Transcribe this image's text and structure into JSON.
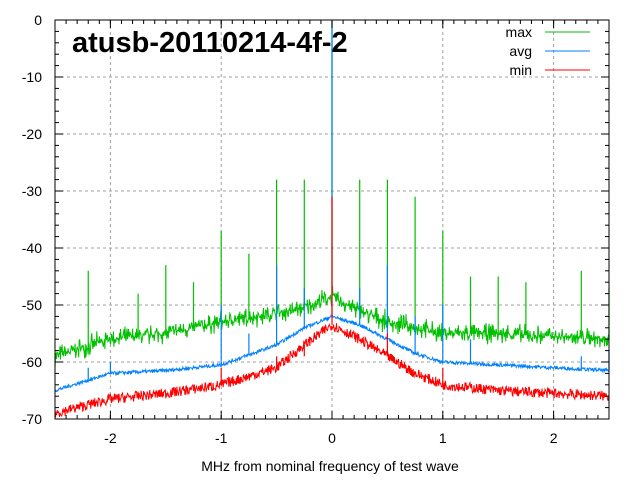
{
  "chart_data": {
    "type": "line",
    "title": "atusb-20110214-4f-2",
    "xlabel": "MHz from nominal frequency of test wave",
    "ylabel": "",
    "xlim": [
      -2.5,
      2.5
    ],
    "ylim": [
      -70,
      0
    ],
    "xticks": [
      -2,
      -1,
      0,
      1,
      2
    ],
    "yticks": [
      0,
      -10,
      -20,
      -30,
      -40,
      -50,
      -60,
      -70
    ],
    "grid": true,
    "legend_position": "top-right",
    "series": [
      {
        "name": "max",
        "color": "#00c000",
        "noise": 2.2,
        "x": [
          -2.5,
          -2,
          -1.5,
          -1,
          -0.5,
          -0.25,
          0,
          0.25,
          0.5,
          0.75,
          1,
          1.5,
          2,
          2.5
        ],
        "y": [
          -59,
          -56,
          -55,
          -53,
          -51.5,
          -50.5,
          -48.5,
          -51,
          -53,
          -54,
          -55,
          -55,
          -55.5,
          -56
        ],
        "spikes": [
          [
            -2.2,
            -44
          ],
          [
            -1.75,
            -48
          ],
          [
            -1.5,
            -43
          ],
          [
            -1.25,
            -46
          ],
          [
            -1,
            -37
          ],
          [
            -0.75,
            -41
          ],
          [
            -0.5,
            -28
          ],
          [
            -0.25,
            -28
          ],
          [
            0,
            0
          ],
          [
            0.25,
            -28
          ],
          [
            0.5,
            -28
          ],
          [
            0.75,
            -31
          ],
          [
            1,
            -37
          ],
          [
            1.25,
            -45
          ],
          [
            1.5,
            -45
          ],
          [
            1.75,
            -46
          ],
          [
            2.25,
            -44
          ],
          [
            2.5,
            -47
          ]
        ]
      },
      {
        "name": "avg",
        "color": "#0080ff",
        "noise": 0.3,
        "x": [
          -2.5,
          -2,
          -1.5,
          -1,
          -0.5,
          -0.25,
          0,
          0.25,
          0.5,
          0.75,
          1,
          1.5,
          2,
          2.5
        ],
        "y": [
          -65,
          -62,
          -61.5,
          -60.5,
          -57,
          -54,
          -52,
          -53.5,
          -56,
          -58.5,
          -60,
          -60.5,
          -61,
          -61.5
        ],
        "spikes": [
          [
            -2.2,
            -61
          ],
          [
            -2,
            -60
          ],
          [
            -1,
            -50
          ],
          [
            -0.75,
            -55
          ],
          [
            -0.5,
            -43
          ],
          [
            -0.25,
            -47
          ],
          [
            0,
            0
          ],
          [
            0.25,
            -47
          ],
          [
            0.5,
            -43
          ],
          [
            0.75,
            -52
          ],
          [
            1,
            -50
          ],
          [
            1.25,
            -56
          ],
          [
            2.25,
            -59
          ],
          [
            2.5,
            -58
          ]
        ]
      },
      {
        "name": "min",
        "color": "#ff0000",
        "noise": 0.9,
        "x": [
          -2.5,
          -2,
          -1.5,
          -1,
          -0.5,
          -0.25,
          0,
          0.25,
          0.5,
          0.75,
          1,
          1.5,
          2,
          2.5
        ],
        "y": [
          -69,
          -66.5,
          -65.5,
          -64,
          -61,
          -57,
          -53.5,
          -56,
          -59,
          -62,
          -64,
          -65,
          -65.5,
          -66
        ],
        "spikes": [
          [
            -1,
            -61
          ],
          [
            -0.5,
            -59
          ],
          [
            -0.25,
            -59
          ],
          [
            0,
            -31
          ],
          [
            0.5,
            -55
          ],
          [
            1,
            -61
          ]
        ]
      }
    ]
  }
}
